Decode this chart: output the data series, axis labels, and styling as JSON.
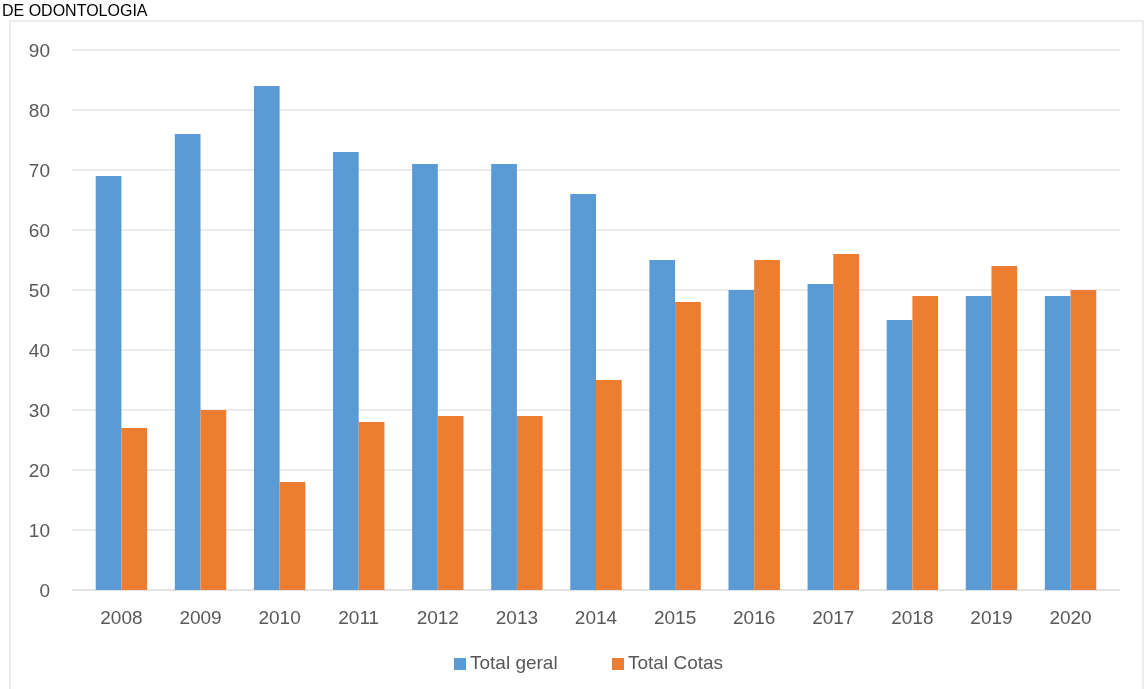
{
  "chart_data": {
    "type": "bar",
    "title": "DE ODONTOLOGIA",
    "categories": [
      "2008",
      "2009",
      "2010",
      "2011",
      "2012",
      "2013",
      "2014",
      "2015",
      "2016",
      "2017",
      "2018",
      "2019",
      "2020"
    ],
    "series": [
      {
        "name": "Total geral",
        "color": "#5b9bd5",
        "values": [
          69,
          76,
          84,
          73,
          71,
          71,
          66,
          55,
          50,
          51,
          45,
          49,
          49
        ]
      },
      {
        "name": "Total Cotas",
        "color": "#ed7d31",
        "values": [
          27,
          30,
          18,
          28,
          29,
          29,
          35,
          48,
          55,
          56,
          49,
          54,
          50
        ]
      }
    ],
    "ylim": [
      0,
      90
    ],
    "yticks": [
      0,
      10,
      20,
      30,
      40,
      50,
      60,
      70,
      80,
      90
    ],
    "grid": "y",
    "legend": "bottom"
  }
}
